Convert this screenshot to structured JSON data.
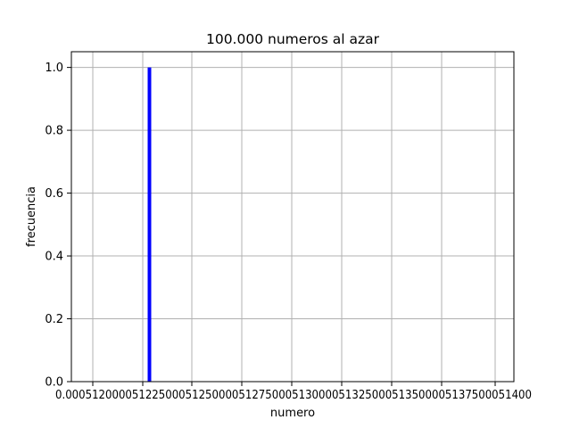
{
  "chart_data": {
    "type": "bar",
    "title": "100.000 numeros al azar",
    "xlabel": "numero",
    "ylabel": "frecuencia",
    "bars": [
      {
        "x": 0.00051213,
        "height": 1.0,
        "width": 8e-07
      }
    ],
    "bar_color": "#0000ff",
    "xlim": [
      0.0005116,
      0.0005142
    ],
    "ylim": [
      0.0,
      1.05
    ],
    "x_ticks": [
      0.000512,
      0.0005125,
      0.000513,
      0.0005135,
      0.000514
    ],
    "x_tick_labels": [
      "0.0005120",
      "0.0005125",
      "0.0005130",
      "0.0005135",
      "0.0005140"
    ],
    "y_ticks": [
      0.0,
      0.2,
      0.4,
      0.6,
      0.8,
      1.0
    ],
    "y_tick_labels": [
      "0.0",
      "0.2",
      "0.4",
      "0.6",
      "0.8",
      "1.0"
    ],
    "x_minor_ticks": [
      0.0005125,
      0.0005135
    ],
    "x_tick_texts": [
      "0.0005120",
      "0.0005",
      "1225",
      "0.0005",
      "1250",
      "0.0005",
      "1275",
      "0.0005",
      "1300",
      "0.0005",
      "1325",
      "0.0005",
      "1350",
      "0.0005",
      "1375",
      "0.0005",
      "1400"
    ],
    "grid": true,
    "grid_color": "#b0b0b0"
  }
}
